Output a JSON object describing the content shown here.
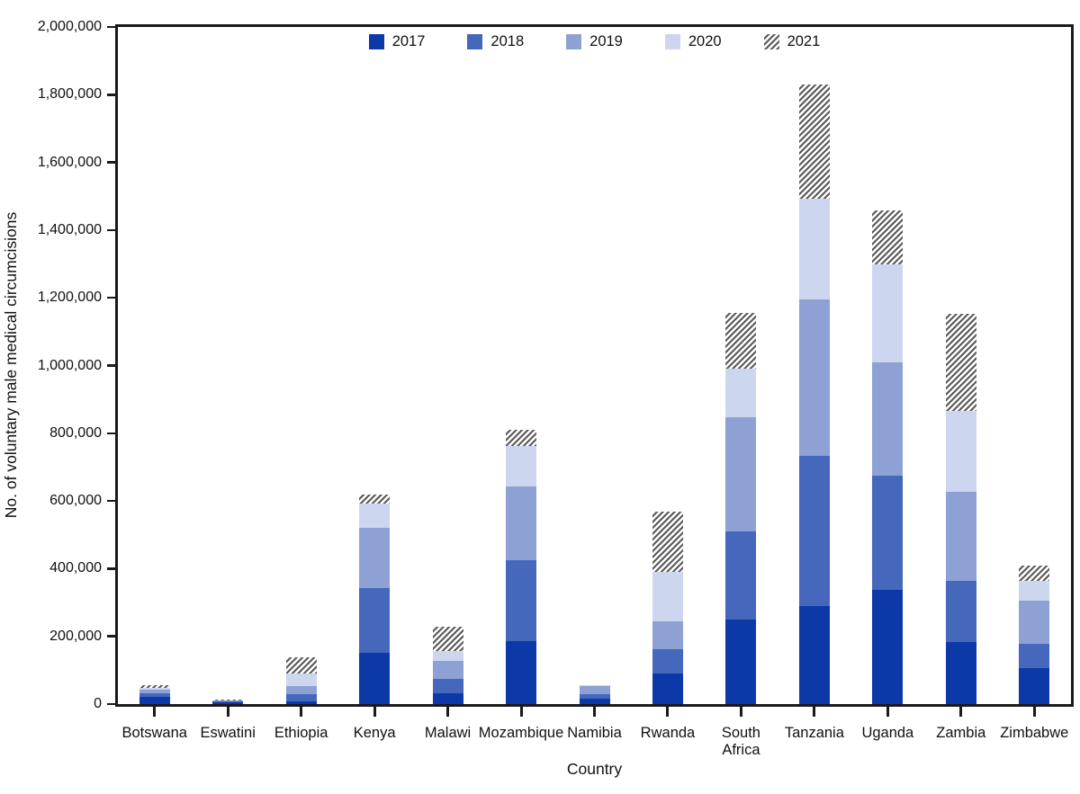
{
  "figure": {
    "kind": "stacked-bar-chart",
    "background": "#ffffff",
    "frame_color": "#1a1a1a"
  },
  "chart_data": {
    "type": "bar",
    "stacked": true,
    "title": "",
    "xlabel": "Country",
    "ylabel": "No. of voluntary male medical circumcisions",
    "ylim": [
      0,
      2000000
    ],
    "ytick_interval": 200000,
    "ytick_labels": [
      "0",
      "200,000",
      "400,000",
      "600,000",
      "800,000",
      "1,000,000",
      "1,200,000",
      "1,400,000",
      "1,600,000",
      "1,800,000",
      "2,000,000"
    ],
    "grid": false,
    "legend_position": "top-center",
    "categories": [
      "Botswana",
      "Eswatini",
      "Ethiopia",
      "Kenya",
      "Malawi",
      "Mozambique",
      "Namibia",
      "Rwanda",
      "South\nAfrica",
      "Tanzania",
      "Uganda",
      "Zambia",
      "Zimbabwe"
    ],
    "series": [
      {
        "name": "2017",
        "color": "#0d38a8",
        "pattern": "solid",
        "values": [
          20000,
          4000,
          8000,
          150000,
          31000,
          187000,
          15000,
          89000,
          250000,
          289000,
          337000,
          184000,
          105000
        ]
      },
      {
        "name": "2018",
        "color": "#4568bc",
        "pattern": "solid",
        "values": [
          12000,
          3000,
          21000,
          192000,
          44000,
          239000,
          15000,
          74000,
          260000,
          445000,
          337000,
          179000,
          74000
        ]
      },
      {
        "name": "2019",
        "color": "#8da1d4",
        "pattern": "solid",
        "values": [
          11000,
          2500,
          24000,
          179000,
          52000,
          218000,
          23000,
          82000,
          337000,
          460000,
          334000,
          263000,
          126000
        ]
      },
      {
        "name": "2020",
        "color": "#ccd6ee",
        "pattern": "solid",
        "values": [
          6000,
          1500,
          37000,
          71000,
          31000,
          118000,
          2000,
          145000,
          145000,
          300000,
          292000,
          239000,
          58000
        ]
      },
      {
        "name": "2021",
        "color": "#5a5a5a",
        "pattern": "hatch",
        "values": [
          6000,
          3000,
          47000,
          26000,
          70000,
          47000,
          1000,
          179000,
          163000,
          337000,
          158000,
          287000,
          47000
        ]
      }
    ]
  }
}
